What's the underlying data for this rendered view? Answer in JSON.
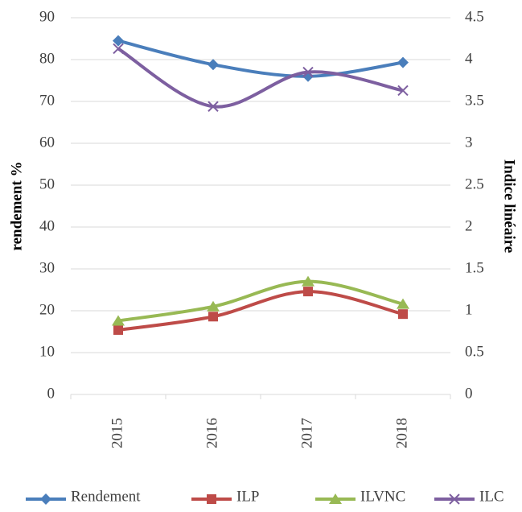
{
  "chart_data": {
    "type": "line",
    "categories": [
      "2015",
      "2016",
      "2017",
      "2018"
    ],
    "y_label": "rendement %",
    "y2_label": "Indice linéaire",
    "ylim": [
      0,
      90
    ],
    "yticks": [
      0,
      10,
      20,
      30,
      40,
      50,
      60,
      70,
      80,
      90
    ],
    "y2lim": [
      0,
      4.5
    ],
    "y2ticks": [
      0,
      0.5,
      1,
      1.5,
      2,
      2.5,
      3,
      3.5,
      4,
      4.5
    ],
    "grid": true,
    "legend": "bottom",
    "smooth": true,
    "series": [
      {
        "name": "Rendement",
        "color": "#4a7ebb",
        "marker": "diamond",
        "values": [
          84.5,
          78.8,
          76,
          79.3
        ]
      },
      {
        "name": "ILP",
        "color": "#be4b48",
        "marker": "square",
        "axis": "y2",
        "values": [
          0.77,
          0.93,
          1.23,
          0.96
        ]
      },
      {
        "name": "ILVNC",
        "color": "#98b954",
        "marker": "triangle",
        "axis": "y2",
        "values": [
          0.88,
          1.05,
          1.35,
          1.08
        ]
      },
      {
        "name": "ILC",
        "color": "#7d5fa0",
        "marker": "x",
        "axis": "y2",
        "values": [
          4.13,
          3.44,
          3.85,
          3.63
        ]
      }
    ]
  }
}
